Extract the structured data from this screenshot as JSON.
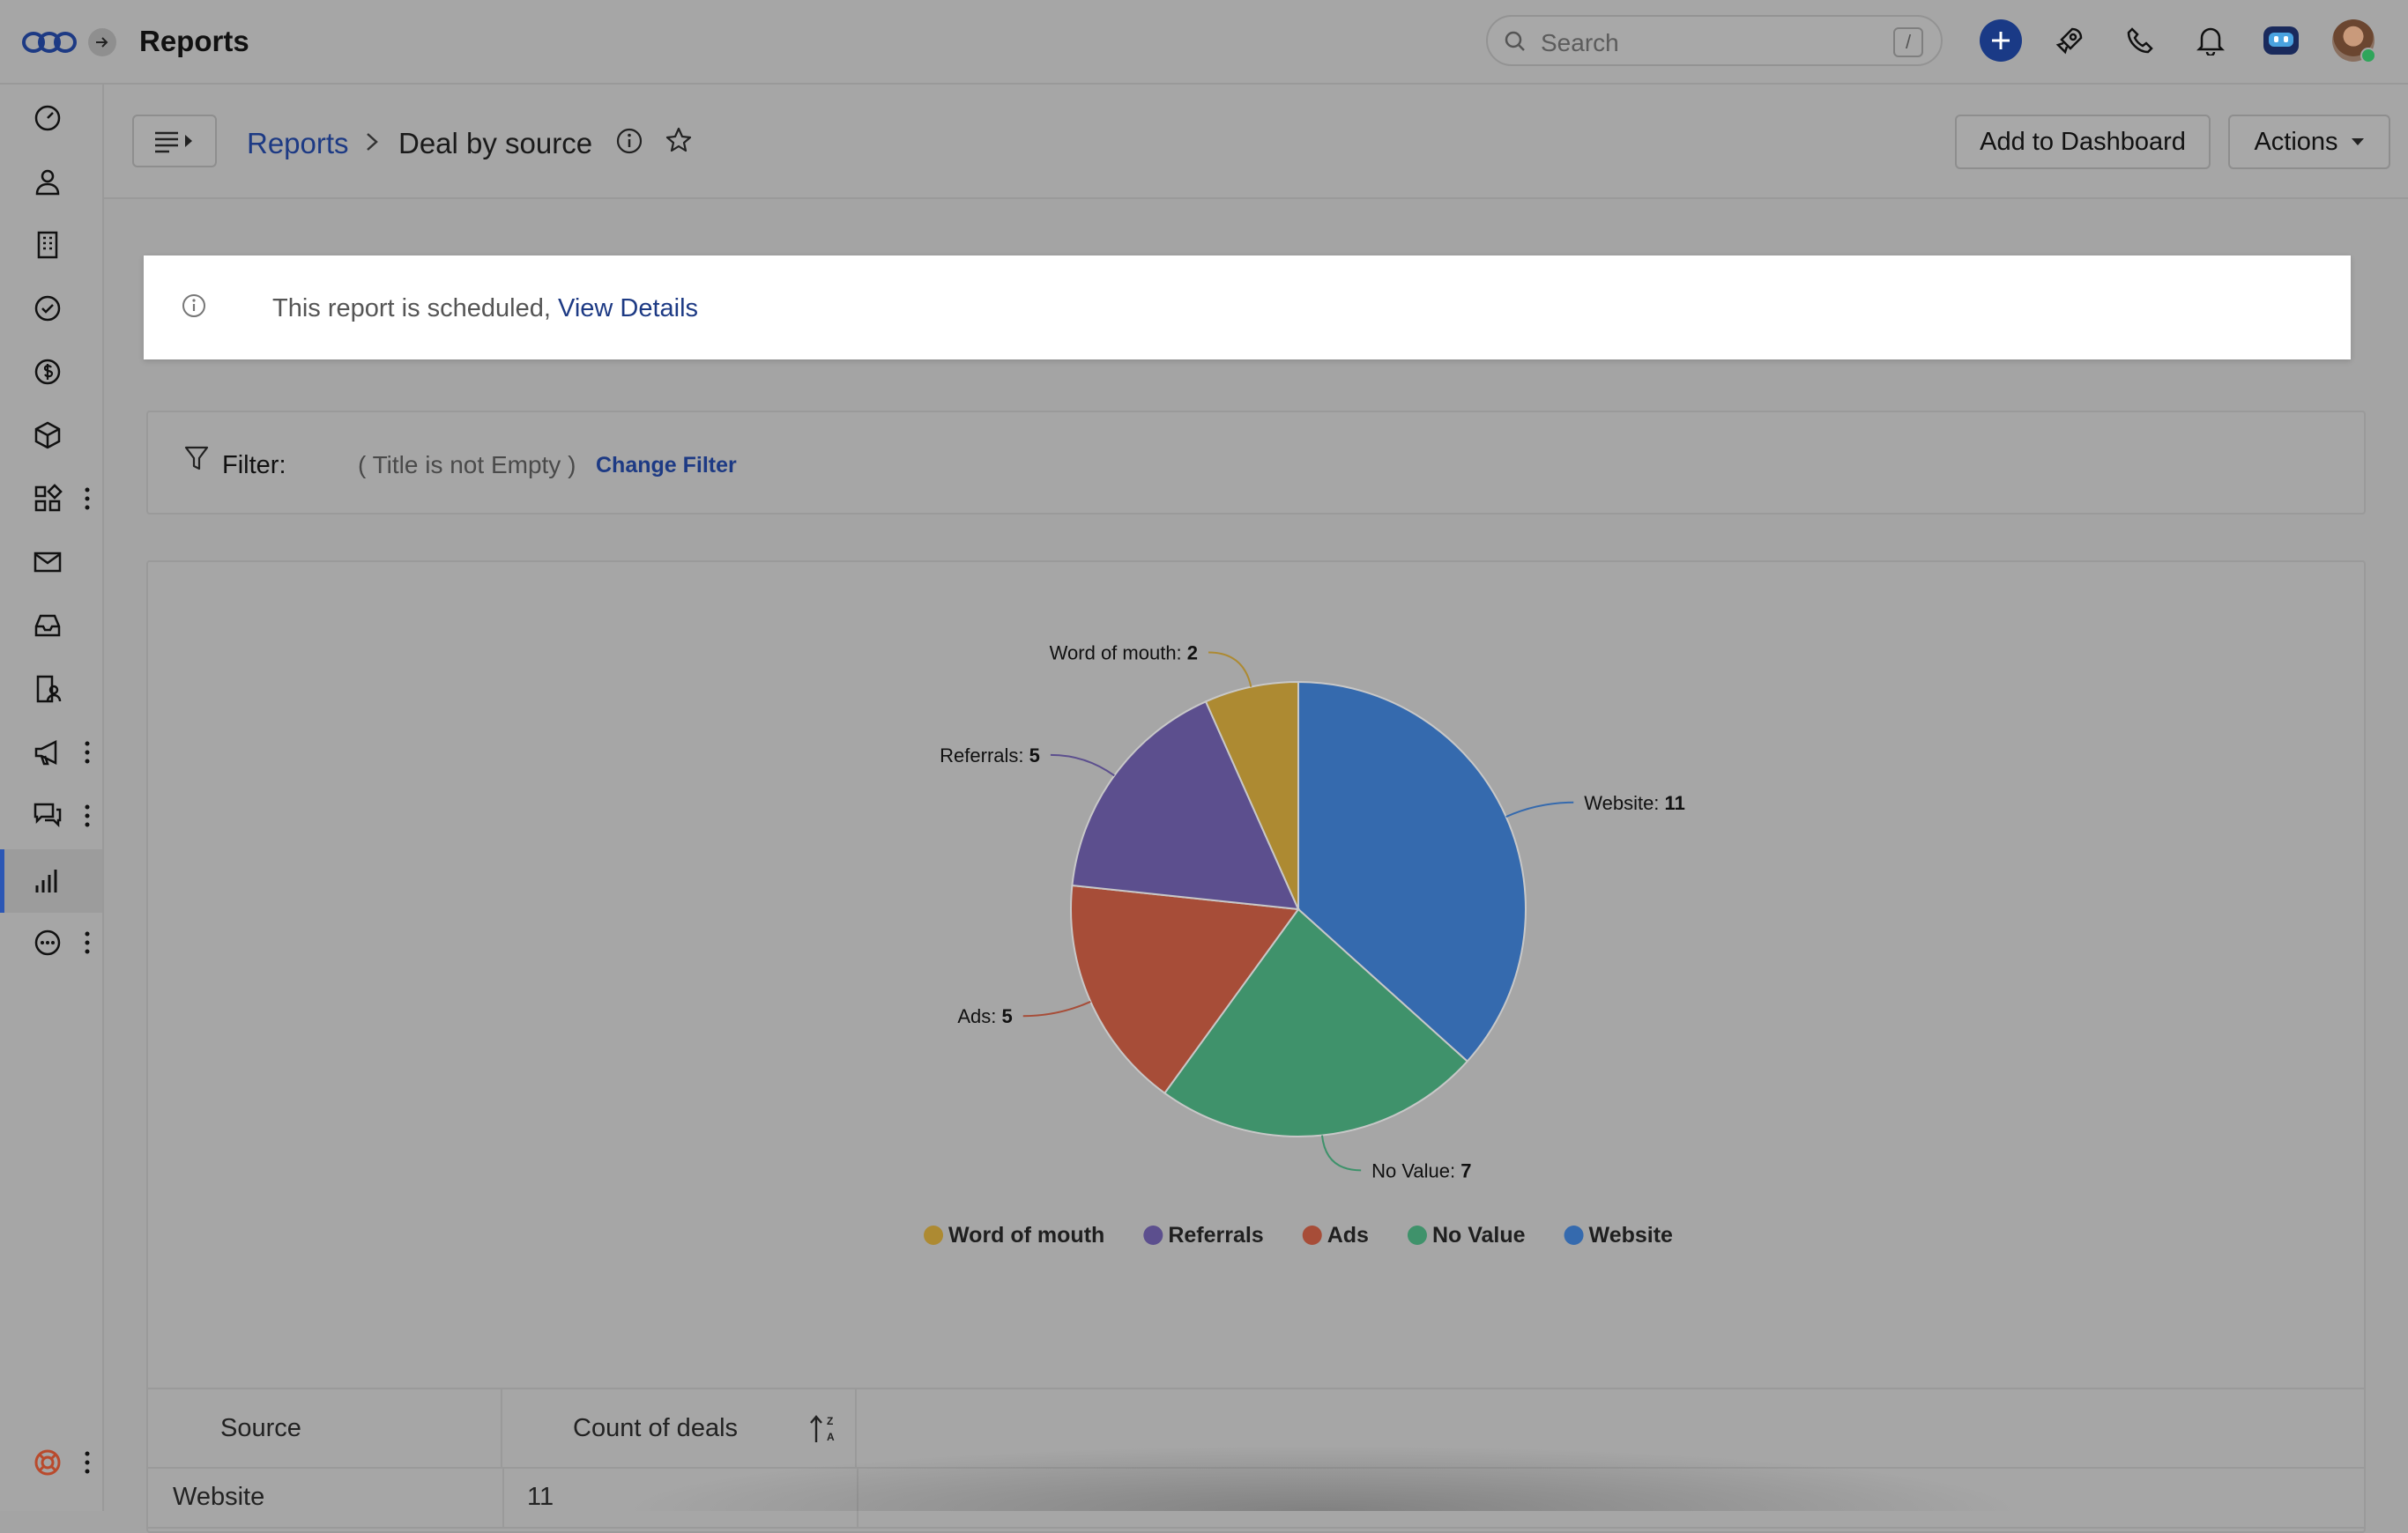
{
  "app": {
    "title": "Reports",
    "search_placeholder": "Search",
    "search_shortcut": "/"
  },
  "sidebar": {
    "items": [
      {
        "icon": "speedometer-icon"
      },
      {
        "icon": "person-icon"
      },
      {
        "icon": "building-icon"
      },
      {
        "icon": "check-circle-icon"
      },
      {
        "icon": "dollar-icon"
      },
      {
        "icon": "box-icon"
      },
      {
        "icon": "apps-grid-icon",
        "more": true
      },
      {
        "icon": "mail-icon"
      },
      {
        "icon": "inbox-icon"
      },
      {
        "icon": "document-person-icon"
      },
      {
        "icon": "megaphone-icon",
        "more": true
      },
      {
        "icon": "chat-icon",
        "more": true
      },
      {
        "icon": "bar-chart-icon",
        "active": true
      },
      {
        "icon": "more-circle-icon",
        "more": true
      }
    ],
    "help_icon": "lifebuoy-icon"
  },
  "header": {
    "breadcrumb_root": "Reports",
    "breadcrumb_current": "Deal by source",
    "add_to_dashboard": "Add to Dashboard",
    "actions": "Actions"
  },
  "notice": {
    "text": "This report is scheduled,",
    "link": "View Details"
  },
  "filter": {
    "label": "Filter:",
    "condition": "( Title is not Empty )",
    "change": "Change Filter"
  },
  "chart_data": {
    "type": "pie",
    "categories": [
      "Website",
      "No Value",
      "Ads",
      "Referrals",
      "Word of mouth"
    ],
    "values": [
      11,
      7,
      5,
      5,
      2
    ],
    "colors": [
      "#356aae",
      "#3f926b",
      "#a74d38",
      "#5c4f8e",
      "#ad8a32"
    ],
    "legend_order": [
      "Word of mouth",
      "Referrals",
      "Ads",
      "No Value",
      "Website"
    ],
    "legend_position": "bottom"
  },
  "table": {
    "headers": [
      "Source",
      "Count of deals"
    ],
    "rows": [
      {
        "source": "Website",
        "count": "11"
      }
    ]
  }
}
